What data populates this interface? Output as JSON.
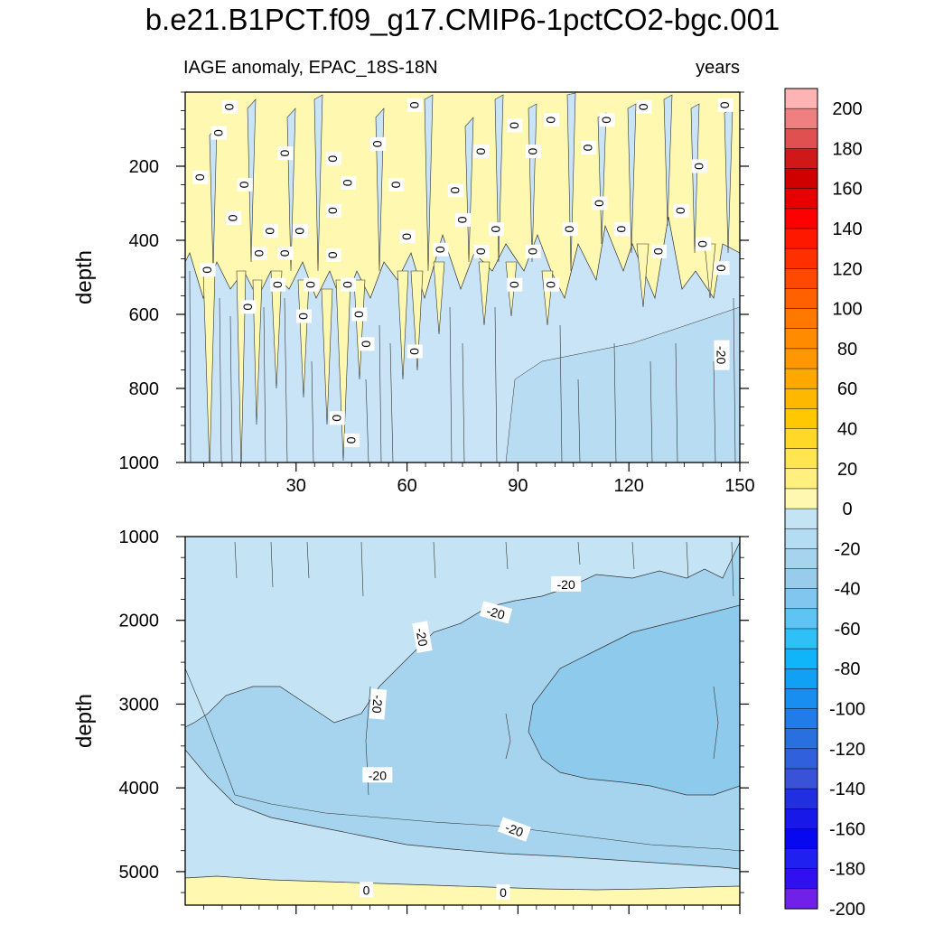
{
  "title": "b.e21.B1PCT.f09_g17.CMIP6-1pctCO2-bgc.001",
  "chart_data": [
    {
      "type": "contour",
      "panel": "upper",
      "left_label": "IAGE anomaly, EPAC_18S-18N",
      "right_label": "years",
      "ylabel": "depth",
      "xlim": [
        0,
        150
      ],
      "ylim": [
        0,
        1000
      ],
      "y_reversed": true,
      "x_ticks": [
        30,
        60,
        90,
        120,
        150
      ],
      "y_ticks": [
        200,
        400,
        600,
        800,
        1000
      ],
      "contour_labels": [
        {
          "text": "0",
          "x": 12,
          "y": 40
        },
        {
          "text": "0",
          "x": 9,
          "y": 110
        },
        {
          "text": "0",
          "x": 4,
          "y": 230
        },
        {
          "text": "0",
          "x": 6,
          "y": 480
        },
        {
          "text": "0",
          "x": 27,
          "y": 165
        },
        {
          "text": "0",
          "x": 16,
          "y": 250
        },
        {
          "text": "0",
          "x": 13,
          "y": 340
        },
        {
          "text": "0",
          "x": 23,
          "y": 375
        },
        {
          "text": "0",
          "x": 27,
          "y": 435
        },
        {
          "text": "0",
          "x": 31,
          "y": 375
        },
        {
          "text": "0",
          "x": 20,
          "y": 435
        },
        {
          "text": "0",
          "x": 25,
          "y": 520
        },
        {
          "text": "0",
          "x": 17,
          "y": 580
        },
        {
          "text": "0",
          "x": 34,
          "y": 520
        },
        {
          "text": "0",
          "x": 32,
          "y": 605
        },
        {
          "text": "0",
          "x": 40,
          "y": 180
        },
        {
          "text": "0",
          "x": 44,
          "y": 245
        },
        {
          "text": "0",
          "x": 40,
          "y": 320
        },
        {
          "text": "0",
          "x": 40,
          "y": 440
        },
        {
          "text": "0",
          "x": 44,
          "y": 520
        },
        {
          "text": "0",
          "x": 47,
          "y": 600
        },
        {
          "text": "0",
          "x": 49,
          "y": 680
        },
        {
          "text": "0",
          "x": 41,
          "y": 880
        },
        {
          "text": "0",
          "x": 45,
          "y": 940
        },
        {
          "text": "0",
          "x": 52,
          "y": 140
        },
        {
          "text": "0",
          "x": 57,
          "y": 250
        },
        {
          "text": "0",
          "x": 62,
          "y": 35
        },
        {
          "text": "0",
          "x": 60,
          "y": 390
        },
        {
          "text": "0",
          "x": 62,
          "y": 700
        },
        {
          "text": "0",
          "x": 69,
          "y": 425
        },
        {
          "text": "0",
          "x": 73,
          "y": 265
        },
        {
          "text": "0",
          "x": 75,
          "y": 345
        },
        {
          "text": "0",
          "x": 80,
          "y": 160
        },
        {
          "text": "0",
          "x": 80,
          "y": 430
        },
        {
          "text": "0",
          "x": 84,
          "y": 370
        },
        {
          "text": "0",
          "x": 89,
          "y": 90
        },
        {
          "text": "0",
          "x": 89,
          "y": 520
        },
        {
          "text": "0",
          "x": 94,
          "y": 160
        },
        {
          "text": "0",
          "x": 94,
          "y": 430
        },
        {
          "text": "0",
          "x": 99,
          "y": 75
        },
        {
          "text": "0",
          "x": 99,
          "y": 520
        },
        {
          "text": "0",
          "x": 104,
          "y": 370
        },
        {
          "text": "0",
          "x": 109,
          "y": 150
        },
        {
          "text": "0",
          "x": 112,
          "y": 300
        },
        {
          "text": "0",
          "x": 114,
          "y": 75
        },
        {
          "text": "0",
          "x": 118,
          "y": 370
        },
        {
          "text": "0",
          "x": 124,
          "y": 40
        },
        {
          "text": "0",
          "x": 128,
          "y": 430
        },
        {
          "text": "0",
          "x": 134,
          "y": 320
        },
        {
          "text": "0",
          "x": 139,
          "y": 200
        },
        {
          "text": "0",
          "x": 140,
          "y": 410
        },
        {
          "text": "0",
          "x": 145,
          "y": 475
        },
        {
          "text": "0",
          "x": 146,
          "y": 35
        },
        {
          "text": "-20",
          "x": 145,
          "y": 710,
          "rotate": 90
        }
      ]
    },
    {
      "type": "contour",
      "panel": "lower",
      "ylabel": "depth",
      "xlim": [
        0,
        150
      ],
      "ylim": [
        1000,
        5400
      ],
      "y_reversed": true,
      "y_ticks": [
        1000,
        2000,
        3000,
        4000,
        5000
      ],
      "contour_labels": [
        {
          "text": "-20",
          "x": 103,
          "y": 1570,
          "rotate": 0
        },
        {
          "text": "-20",
          "x": 84,
          "y": 1910,
          "rotate": 15
        },
        {
          "text": "-20",
          "x": 64,
          "y": 2200,
          "rotate": 80
        },
        {
          "text": "-20",
          "x": 52,
          "y": 3000,
          "rotate": 95
        },
        {
          "text": "-20",
          "x": 52,
          "y": 3850,
          "rotate": 0
        },
        {
          "text": "-20",
          "x": 89,
          "y": 4500,
          "rotate": 20
        },
        {
          "text": "0",
          "x": 49,
          "y": 5220,
          "rotate": 0
        },
        {
          "text": "0",
          "x": 86,
          "y": 5250,
          "rotate": 0
        }
      ]
    }
  ],
  "colorbar": {
    "labels": [
      "200",
      "180",
      "160",
      "140",
      "120",
      "100",
      "80",
      "60",
      "40",
      "20",
      "0",
      "-20",
      "-40",
      "-60",
      "-80",
      "-100",
      "-120",
      "-140",
      "-160",
      "-180",
      "-200"
    ],
    "colors": [
      "#ffb4b4",
      "#f08080",
      "#e05050",
      "#d01818",
      "#d00000",
      "#e80000",
      "#ff0000",
      "#ff1800",
      "#ff3000",
      "#ff4800",
      "#ff6000",
      "#ff7800",
      "#ff8c00",
      "#ff9800",
      "#ffa800",
      "#ffb800",
      "#ffc800",
      "#ffd828",
      "#ffe650",
      "#fff080",
      "#fff8b0",
      "#c4e4f6",
      "#b4dcf2",
      "#a6d4ee",
      "#98ccea",
      "#80c6ee",
      "#5ec4f4",
      "#30c0f8",
      "#10b4f8",
      "#10a0f4",
      "#188ef0",
      "#207ce8",
      "#2870e0",
      "#3060dc",
      "#3852d8",
      "#2030e0",
      "#1818e8",
      "#0808f0",
      "#2020f0",
      "#3010f0",
      "#7020e8"
    ]
  }
}
